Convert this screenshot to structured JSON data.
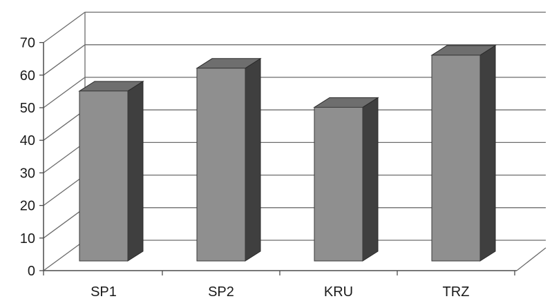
{
  "chart_data": {
    "type": "bar",
    "style": "3d-column",
    "categories": [
      "SP1",
      "SP2",
      "KRU",
      "TRZ"
    ],
    "values": [
      53,
      60,
      48,
      64
    ],
    "ylim": [
      0,
      70
    ],
    "yticks": [
      0,
      10,
      20,
      30,
      40,
      50,
      60,
      70
    ],
    "title": "",
    "xlabel": "",
    "ylabel": "",
    "grid": true,
    "legend": "none",
    "colors": {
      "bar_front": "#8f8f8f",
      "bar_top": "#6e6e6e",
      "bar_side": "#3f3f3f",
      "gridline": "#6b6b6b",
      "axis": "#4a4a4a"
    }
  }
}
